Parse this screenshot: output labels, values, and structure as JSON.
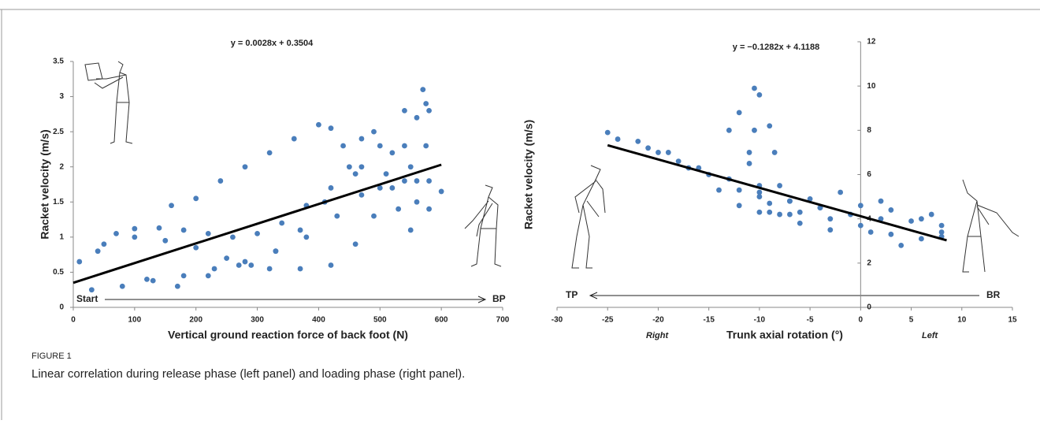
{
  "chart_data": [
    {
      "type": "scatter",
      "equation": "y = 0.0028x + 0.3504",
      "x_label": "Vertical ground reaction force of back foot (N)",
      "y_label": "Racket velocity (m/s)",
      "annotations": [
        "Start",
        "BP"
      ],
      "xlim": [
        0,
        700
      ],
      "xticks": [
        0,
        100,
        200,
        300,
        400,
        500,
        600,
        700
      ],
      "ylim": [
        0,
        3.5
      ],
      "yticks": [
        0,
        0.5,
        1,
        1.5,
        2,
        2.5,
        3,
        3.5
      ],
      "series": [
        {
          "color": "#4a7ebb",
          "x": [
            10,
            40,
            70,
            100,
            140,
            180,
            220,
            260,
            300,
            340,
            380,
            420,
            460,
            500,
            540,
            570,
            580,
            575,
            560,
            30,
            80,
            130,
            180,
            230,
            280,
            330,
            380,
            430,
            470,
            510,
            540,
            560,
            575,
            160,
            200,
            240,
            280,
            320,
            360,
            400,
            420,
            440,
            470,
            500,
            530,
            550,
            50,
            100,
            150,
            200,
            250,
            290,
            330,
            370,
            410,
            450,
            470,
            490,
            520,
            540,
            560,
            580,
            120,
            170,
            220,
            270,
            320,
            370,
            420,
            460,
            490,
            520,
            550,
            580,
            600
          ],
          "values": [
            0.65,
            0.8,
            1.05,
            1.12,
            1.13,
            1.1,
            1.05,
            1.0,
            1.05,
            1.2,
            1.45,
            1.7,
            1.9,
            2.3,
            2.8,
            3.1,
            2.8,
            2.3,
            1.8,
            0.25,
            0.3,
            0.38,
            0.45,
            0.55,
            0.65,
            0.8,
            1.0,
            1.3,
            1.6,
            1.9,
            2.3,
            2.7,
            2.9,
            1.45,
            1.55,
            1.8,
            2.0,
            2.2,
            2.4,
            2.6,
            2.55,
            2.3,
            2.0,
            1.7,
            1.4,
            1.1,
            0.9,
            1.0,
            0.95,
            0.85,
            0.7,
            0.6,
            0.8,
            1.1,
            1.5,
            2.0,
            2.4,
            2.5,
            2.2,
            1.8,
            1.5,
            1.4,
            0.4,
            0.3,
            0.45,
            0.6,
            0.55,
            0.55,
            0.6,
            0.9,
            1.3,
            1.7,
            2.0,
            1.8,
            1.65
          ]
        }
      ],
      "fit": {
        "color": "#000000",
        "x": [
          0,
          600
        ],
        "values": [
          0.3504,
          2.0304
        ]
      }
    },
    {
      "type": "scatter",
      "equation": "y = −0.1282x + 4.1188",
      "x_label": "Trunk axial rotation (°)",
      "y_label": "Racket velocity (m/s)",
      "annotations": [
        "TP",
        "BR",
        "Right",
        "Left"
      ],
      "xlim": [
        -30,
        15
      ],
      "xticks": [
        -30,
        -25,
        -20,
        -15,
        -10,
        -5,
        0,
        5,
        10,
        15
      ],
      "ylim": [
        0,
        12
      ],
      "yticks": [
        0,
        2,
        4,
        6,
        8,
        10,
        12
      ],
      "series": [
        {
          "color": "#4a7ebb",
          "x": [
            -25,
            -22,
            -19,
            -16,
            -13,
            -10,
            -7,
            -4,
            -1,
            2,
            5,
            7,
            -24,
            -21,
            -18,
            -15,
            -12,
            -9,
            -6,
            -3,
            0,
            3,
            6,
            8,
            -20,
            -17,
            -14,
            -12,
            -10,
            -7,
            -4,
            0,
            3,
            8,
            -13,
            -12,
            -11,
            -10,
            -9,
            -6,
            -3,
            1,
            4,
            -10.5,
            -10,
            -10.5,
            -11,
            -10,
            -8,
            -9,
            -8.5,
            -8,
            -7,
            -5,
            -2,
            2,
            6,
            8
          ],
          "values": [
            7.9,
            7.5,
            7.0,
            6.3,
            5.8,
            5.2,
            4.8,
            4.5,
            4.2,
            4.0,
            3.9,
            4.2,
            7.6,
            7.2,
            6.6,
            6.0,
            5.3,
            4.7,
            4.3,
            4.0,
            3.7,
            3.3,
            3.1,
            3.4,
            7.0,
            6.3,
            5.3,
            4.6,
            4.3,
            4.2,
            4.5,
            4.6,
            4.4,
            3.2,
            8.0,
            8.8,
            7.0,
            5.5,
            4.3,
            3.8,
            3.5,
            3.4,
            2.8,
            9.9,
            9.6,
            8.0,
            6.5,
            5.0,
            4.2,
            8.2,
            7.0,
            5.5,
            4.8,
            4.9,
            5.2,
            4.8,
            4.0,
            3.7
          ]
        }
      ],
      "fit": {
        "color": "#000000",
        "x": [
          -25,
          8.5
        ],
        "values": [
          7.3238,
          3.0291
        ]
      }
    }
  ],
  "figure": {
    "label": "FIGURE 1",
    "caption": "Linear correlation during release phase (left panel) and loading phase (right panel)."
  }
}
